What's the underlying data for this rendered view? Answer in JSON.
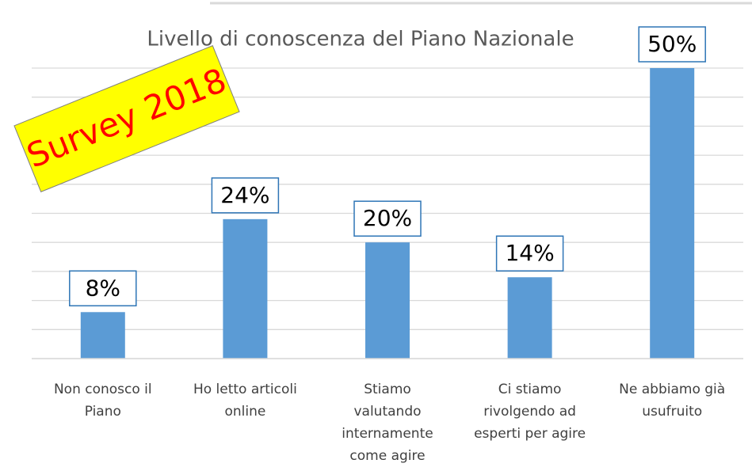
{
  "chart_data": {
    "type": "bar",
    "title": "Livello di conoscenza del Piano Nazionale",
    "badge": "Survey 2018",
    "categories": [
      [
        "Non conosco il",
        "Piano"
      ],
      [
        "Ho letto articoli",
        "online"
      ],
      [
        "Stiamo",
        "valutando",
        "internamente",
        "come agire"
      ],
      [
        "Ci stiamo",
        "rivolgendo ad",
        "esperti per agire"
      ],
      [
        "Ne abbiamo già",
        "usufruito"
      ]
    ],
    "values": [
      8,
      24,
      20,
      14,
      50
    ],
    "value_labels": [
      "8%",
      "24%",
      "20%",
      "14%",
      "50%"
    ],
    "color": "#5b9bd5",
    "ylim": [
      0,
      50
    ],
    "yticks": [
      0,
      5,
      10,
      15,
      20,
      25,
      30,
      35,
      40,
      45,
      50
    ],
    "grid": true
  }
}
